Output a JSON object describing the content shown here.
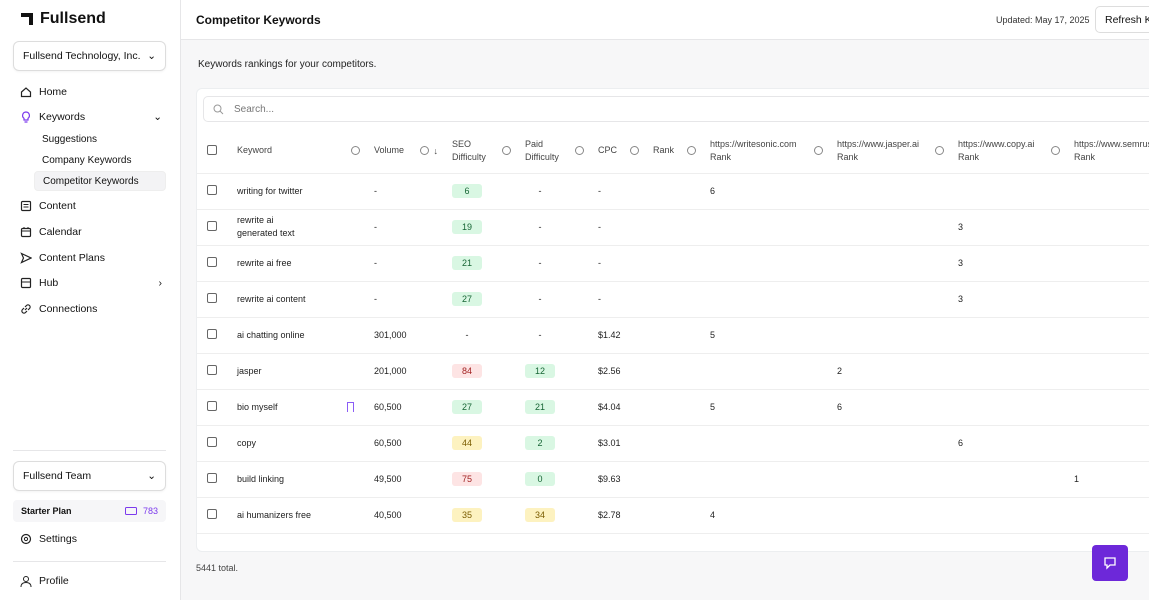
{
  "sidebar": {
    "brand": "Fullsend",
    "org": "Fullsend Technology, Inc.",
    "nav": [
      "Home",
      "Keywords",
      "Content",
      "Calendar",
      "Content Plans",
      "Hub",
      "Connections"
    ],
    "keywords_sub": [
      "Suggestions",
      "Company Keywords",
      "Competitor Keywords"
    ],
    "team": "Fullsend Team",
    "plan": "Starter Plan",
    "credits": 783,
    "settings": "Settings",
    "profile": "Profile"
  },
  "header": {
    "title": "Competitor Keywords",
    "updated": "Updated: May 17, 2025",
    "refresh": "Refresh Keywords"
  },
  "subtitle": "Keywords rankings for your competitors.",
  "search_placeholder": "Search...",
  "table": {
    "columns": [
      "Keyword",
      "Volume",
      "SEO Difficulty",
      "Paid Difficulty",
      "CPC",
      "Rank",
      "https://writesonic.com Rank",
      "https://www.jasper.ai Rank",
      "https://www.copy.ai Rank",
      "https://www.semrush.com Rank"
    ],
    "rows": [
      [
        "writing for twitter",
        "-",
        6,
        "-",
        "-",
        null,
        6,
        null,
        null,
        null
      ],
      [
        "rewrite ai generated text",
        "-",
        19,
        "-",
        "-",
        null,
        null,
        null,
        3,
        null
      ],
      [
        "rewrite ai free",
        "-",
        21,
        "-",
        "-",
        null,
        null,
        null,
        3,
        null
      ],
      [
        "rewrite ai content",
        "-",
        27,
        "-",
        "-",
        null,
        null,
        null,
        3,
        null
      ],
      [
        "ai chatting online",
        "301,000",
        "-",
        "-",
        "$1.42",
        null,
        5,
        null,
        null,
        null
      ],
      [
        "jasper",
        "201,000",
        84,
        12,
        "$2.56",
        null,
        null,
        2,
        null,
        null
      ],
      [
        "bio myself",
        "60,500",
        27,
        21,
        "$4.04",
        null,
        5,
        6,
        null,
        null
      ],
      [
        "copy",
        "60,500",
        44,
        2,
        "$3.01",
        null,
        null,
        null,
        6,
        null
      ],
      [
        "build linking",
        "49,500",
        75,
        0,
        "$9.63",
        null,
        null,
        null,
        null,
        1
      ],
      [
        "ai humanizers free",
        "40,500",
        35,
        34,
        "$2.78",
        null,
        4,
        null,
        null,
        null
      ]
    ]
  },
  "footer": "5441 total."
}
